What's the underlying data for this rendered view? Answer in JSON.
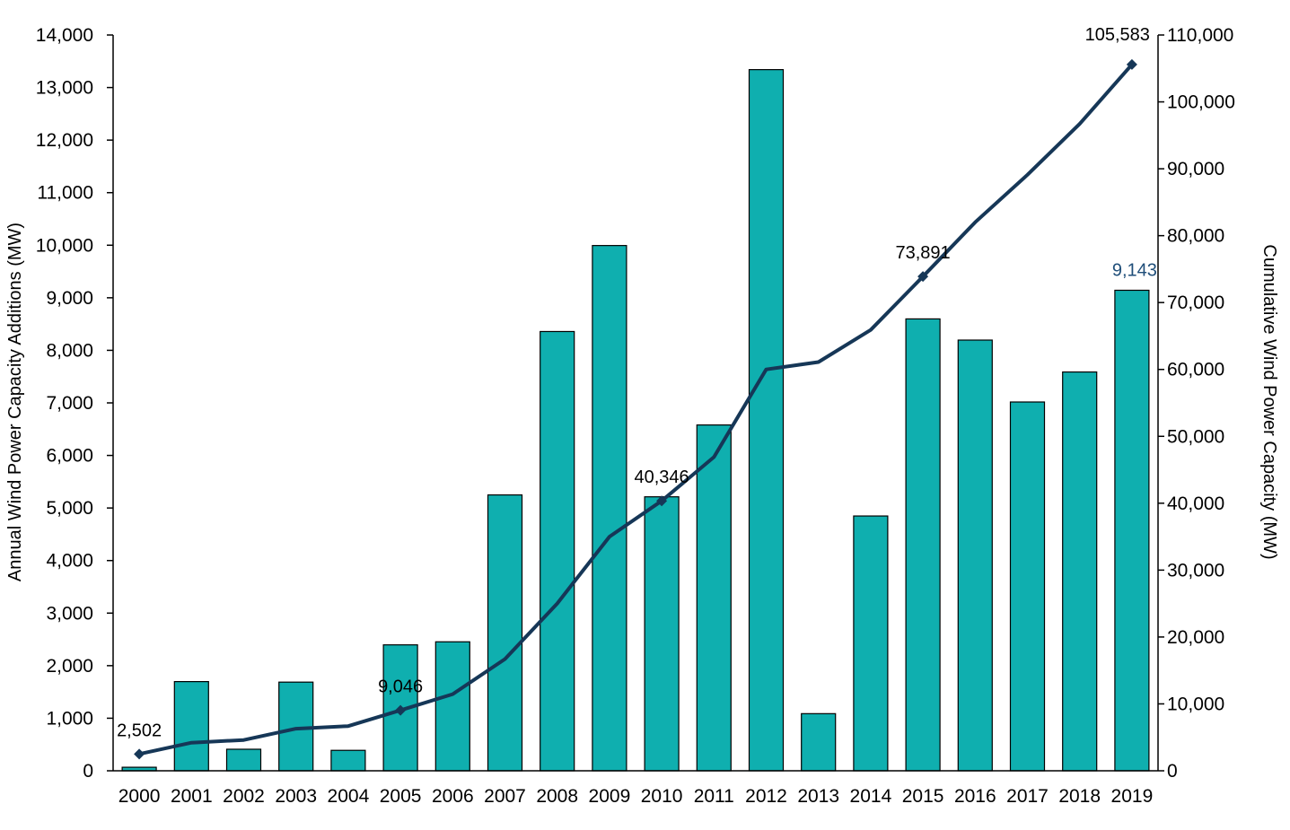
{
  "chart_data": {
    "type": "bar",
    "categories": [
      "2000",
      "2001",
      "2002",
      "2003",
      "2004",
      "2005",
      "2006",
      "2007",
      "2008",
      "2009",
      "2010",
      "2011",
      "2012",
      "2013",
      "2014",
      "2015",
      "2016",
      "2017",
      "2018",
      "2019"
    ],
    "series": [
      {
        "type": "bar",
        "axis": "left",
        "color": "#0FAFAF",
        "values": [
          67,
          1697,
          410,
          1687,
          389,
          2396,
          2454,
          5249,
          8358,
          9994,
          5213,
          6580,
          13341,
          1087,
          4848,
          8598,
          8195,
          7017,
          7588,
          9143
        ]
      },
      {
        "type": "line",
        "axis": "right",
        "color": "#163757",
        "values": [
          2502,
          4197,
          4606,
          6291,
          6679,
          9046,
          11453,
          16700,
          25000,
          35000,
          40346,
          46900,
          60000,
          61100,
          65900,
          73891,
          82000,
          89100,
          96700,
          105583
        ]
      }
    ],
    "ylabel": "Annual Wind Power Capacity Additions (MW)",
    "y2label": "Cumulative Wind Power Capacity (MW)",
    "ylim": [
      0,
      14000
    ],
    "y2lim": [
      0,
      110000
    ],
    "yticks": [
      0,
      1000,
      2000,
      3000,
      4000,
      5000,
      6000,
      7000,
      8000,
      9000,
      10000,
      11000,
      12000,
      13000,
      14000
    ],
    "yticklabels": [
      "0",
      "1,000",
      "2,000",
      "3,000",
      "4,000",
      "5,000",
      "6,000",
      "7,000",
      "8,000",
      "9,000",
      "10,000",
      "11,000",
      "12,000",
      "13,000",
      "14,000"
    ],
    "y2ticks": [
      0,
      10000,
      20000,
      30000,
      40000,
      50000,
      60000,
      70000,
      80000,
      90000,
      100000,
      110000
    ],
    "y2ticklabels": [
      "0",
      "10,000",
      "20,000",
      "30,000",
      "40,000",
      "50,000",
      "60,000",
      "70,000",
      "80,000",
      "90,000",
      "100,000",
      "110,000"
    ],
    "annotations": [
      {
        "text": "2,502",
        "category": "2000",
        "series": 1,
        "color": "#000000"
      },
      {
        "text": "9,046",
        "category": "2005",
        "series": 1,
        "color": "#000000"
      },
      {
        "text": "40,346",
        "category": "2010",
        "series": 1,
        "color": "#000000"
      },
      {
        "text": "73,891",
        "category": "2015",
        "series": 1,
        "color": "#000000"
      },
      {
        "text": "105,583",
        "category": "2019",
        "series": 1,
        "color": "#000000"
      },
      {
        "text": "9,143",
        "category": "2019",
        "series": 0,
        "color": "#1F4E79"
      }
    ],
    "markers_at": [
      "2000",
      "2005",
      "2010",
      "2015",
      "2019"
    ],
    "grid": false,
    "legend": "none"
  }
}
